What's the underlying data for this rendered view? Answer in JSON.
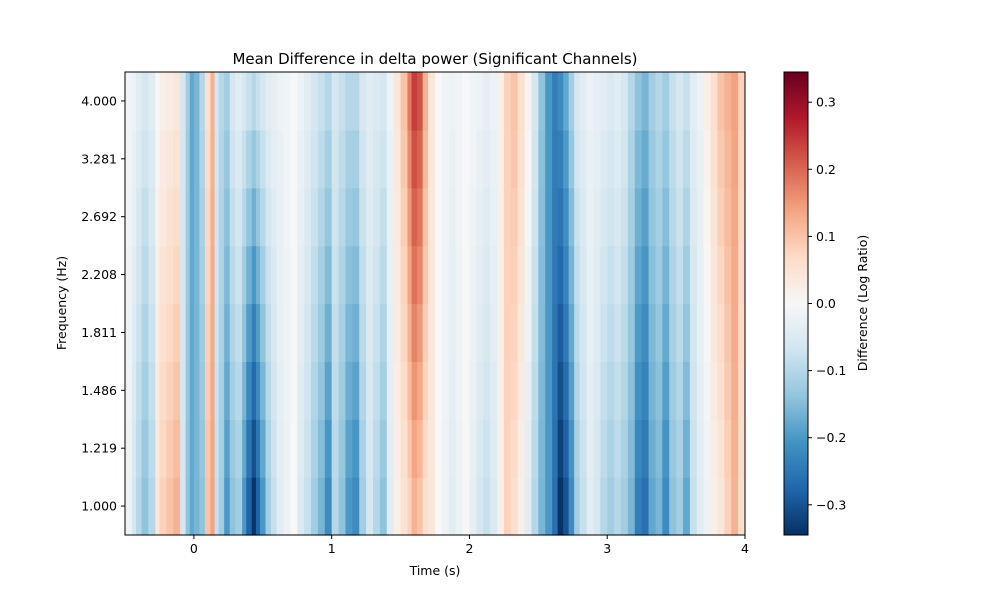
{
  "chart_data": {
    "type": "heatmap",
    "title": "Mean Difference in delta power (Significant Channels)",
    "xlabel": "Time (s)",
    "ylabel": "Frequency (Hz)",
    "xlim": [
      -0.5,
      4.0
    ],
    "x_ticks": [
      "0",
      "1",
      "2",
      "3",
      "4"
    ],
    "x_tick_values": [
      0,
      1,
      2,
      3,
      4
    ],
    "frequencies": [
      1.0,
      1.219,
      1.486,
      1.811,
      2.208,
      2.692,
      3.281,
      4.0
    ],
    "y_tick_labels": [
      "1.000",
      "1.219",
      "1.486",
      "1.811",
      "2.208",
      "2.692",
      "3.281",
      "4.000"
    ],
    "colormap": "RdBu_r",
    "colorbar": {
      "label": "Difference (Log Ratio)",
      "vmin": -0.345,
      "vmax": 0.345,
      "ticks": [
        -0.3,
        -0.2,
        -0.1,
        0.0,
        0.1,
        0.2,
        0.3
      ],
      "tick_labels": [
        "−0.3",
        "−0.2",
        "−0.1",
        "0.0",
        "0.1",
        "0.2",
        "0.3"
      ]
    },
    "time_profile": {
      "times": [
        -0.5,
        -0.45,
        -0.42,
        -0.38,
        -0.33,
        -0.28,
        -0.25,
        -0.2,
        -0.15,
        -0.1,
        -0.06,
        -0.03,
        0.0,
        0.04,
        0.08,
        0.12,
        0.15,
        0.18,
        0.22,
        0.26,
        0.3,
        0.35,
        0.38,
        0.42,
        0.45,
        0.48,
        0.52,
        0.56,
        0.6,
        0.65,
        0.7,
        0.75,
        0.8,
        0.85,
        0.9,
        0.95,
        1.0,
        1.05,
        1.1,
        1.15,
        1.2,
        1.25,
        1.3,
        1.35,
        1.4,
        1.45,
        1.5,
        1.55,
        1.58,
        1.62,
        1.66,
        1.7,
        1.75,
        1.8,
        1.85,
        1.9,
        1.95,
        2.0,
        2.05,
        2.1,
        2.15,
        2.2,
        2.25,
        2.3,
        2.35,
        2.4,
        2.45,
        2.5,
        2.55,
        2.6,
        2.64,
        2.68,
        2.72,
        2.76,
        2.8,
        2.85,
        2.9,
        2.95,
        3.0,
        3.05,
        3.1,
        3.15,
        3.2,
        3.25,
        3.3,
        3.35,
        3.4,
        3.45,
        3.5,
        3.55,
        3.6,
        3.65,
        3.7,
        3.75,
        3.8,
        3.85,
        3.9,
        3.95,
        4.0
      ],
      "low_freq_values": [
        -0.02,
        -0.06,
        -0.1,
        -0.14,
        -0.1,
        0.04,
        0.08,
        0.1,
        0.12,
        -0.06,
        -0.14,
        -0.18,
        -0.16,
        -0.14,
        0.1,
        0.14,
        -0.08,
        -0.12,
        -0.2,
        -0.14,
        -0.12,
        -0.2,
        -0.28,
        -0.34,
        -0.28,
        -0.2,
        -0.12,
        -0.08,
        -0.04,
        -0.02,
        0.0,
        -0.05,
        -0.08,
        -0.12,
        -0.16,
        -0.22,
        -0.1,
        -0.14,
        -0.2,
        -0.22,
        -0.12,
        -0.06,
        -0.1,
        -0.14,
        -0.04,
        0.02,
        0.05,
        0.08,
        0.12,
        0.1,
        0.06,
        0.04,
        0.0,
        -0.02,
        -0.04,
        -0.02,
        0.0,
        -0.03,
        -0.06,
        -0.08,
        -0.05,
        0.02,
        0.08,
        0.06,
        0.02,
        -0.04,
        -0.1,
        -0.16,
        -0.2,
        -0.26,
        -0.34,
        -0.3,
        -0.22,
        -0.12,
        -0.08,
        -0.04,
        -0.06,
        -0.1,
        -0.12,
        -0.1,
        -0.12,
        -0.16,
        -0.24,
        -0.26,
        -0.18,
        -0.16,
        -0.22,
        -0.14,
        -0.12,
        -0.18,
        -0.08,
        -0.04,
        -0.02,
        0.02,
        0.04,
        0.08,
        0.12,
        0.06,
        -0.02
      ],
      "high_freq_values": [
        -0.01,
        -0.02,
        -0.04,
        -0.06,
        -0.04,
        0.0,
        0.02,
        0.03,
        0.04,
        -0.06,
        -0.12,
        -0.18,
        -0.16,
        -0.1,
        0.06,
        0.12,
        -0.06,
        -0.1,
        -0.12,
        -0.06,
        -0.04,
        -0.06,
        -0.08,
        -0.1,
        -0.08,
        -0.06,
        -0.04,
        -0.03,
        -0.02,
        -0.01,
        0.0,
        -0.02,
        -0.04,
        -0.06,
        -0.08,
        -0.1,
        -0.06,
        -0.08,
        -0.1,
        -0.1,
        -0.06,
        -0.04,
        -0.05,
        -0.06,
        -0.02,
        0.04,
        0.1,
        0.18,
        0.24,
        0.22,
        0.12,
        0.04,
        0.0,
        -0.01,
        -0.02,
        -0.01,
        0.0,
        -0.01,
        -0.02,
        -0.03,
        -0.02,
        0.02,
        0.08,
        0.1,
        0.06,
        0.01,
        -0.06,
        -0.14,
        -0.2,
        -0.24,
        -0.22,
        -0.18,
        -0.12,
        -0.06,
        -0.04,
        -0.02,
        -0.03,
        -0.04,
        -0.05,
        -0.04,
        -0.06,
        -0.1,
        -0.14,
        -0.16,
        -0.12,
        -0.1,
        -0.12,
        -0.08,
        -0.06,
        -0.08,
        -0.04,
        -0.02,
        0.02,
        0.06,
        0.1,
        0.12,
        0.14,
        0.08,
        0.0
      ]
    }
  }
}
